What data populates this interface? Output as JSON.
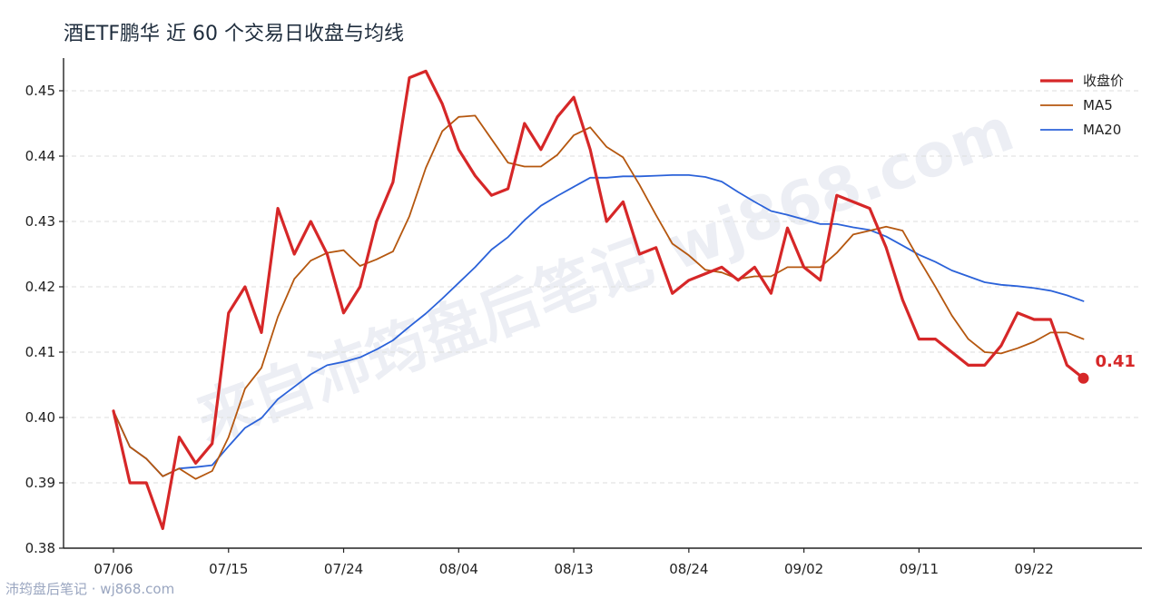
{
  "chart_data": {
    "type": "line",
    "title": "酒ETF鹏华 近 60 个交易日收盘与均线",
    "xlabel": "",
    "ylabel": "",
    "ylim": [
      0.38,
      0.455
    ],
    "yticks": [
      "0.38",
      "0.39",
      "0.40",
      "0.41",
      "0.42",
      "0.43",
      "0.44",
      "0.45"
    ],
    "x_tick_labels": [
      "07/06",
      "07/15",
      "07/24",
      "08/04",
      "08/13",
      "08/24",
      "09/02",
      "09/11",
      "09/22"
    ],
    "x_tick_index": [
      0,
      7,
      14,
      21,
      28,
      35,
      42,
      49,
      56
    ],
    "grid": "horizontal dashed",
    "legend_position": "top-right",
    "series": [
      {
        "name": "收盘价",
        "color": "#d62728",
        "values": [
          0.401,
          0.39,
          0.39,
          0.383,
          0.397,
          0.393,
          0.396,
          0.416,
          0.42,
          0.413,
          0.432,
          0.425,
          0.43,
          0.425,
          0.416,
          0.42,
          0.43,
          0.436,
          0.452,
          0.453,
          0.448,
          0.441,
          0.437,
          0.434,
          0.435,
          0.445,
          0.441,
          0.446,
          0.449,
          0.441,
          0.43,
          0.433,
          0.425,
          0.426,
          0.419,
          0.421,
          0.422,
          0.423,
          0.421,
          0.423,
          0.419,
          0.429,
          0.423,
          0.421,
          0.434,
          0.433,
          0.432,
          0.426,
          0.418,
          0.412,
          0.412,
          0.41,
          0.408,
          0.408,
          0.411,
          0.416,
          0.415,
          0.415,
          0.408,
          0.406
        ]
      },
      {
        "name": "MA5",
        "color": "#b5570f",
        "values": [
          0.401,
          0.3955,
          0.3937,
          0.391,
          0.3922,
          0.3906,
          0.3918,
          0.397,
          0.4044,
          0.4076,
          0.4154,
          0.4212,
          0.424,
          0.4252,
          0.4256,
          0.4232,
          0.4242,
          0.4254,
          0.4308,
          0.4382,
          0.4438,
          0.446,
          0.4462,
          0.4426,
          0.439,
          0.4384,
          0.4384,
          0.4402,
          0.4432,
          0.4444,
          0.4414,
          0.4398,
          0.4356,
          0.431,
          0.4266,
          0.4248,
          0.4226,
          0.4222,
          0.4212,
          0.4216,
          0.4216,
          0.423,
          0.423,
          0.423,
          0.4252,
          0.428,
          0.4286,
          0.4292,
          0.4286,
          0.4242,
          0.42,
          0.4156,
          0.412,
          0.41,
          0.4098,
          0.4106,
          0.4116,
          0.413,
          0.413,
          0.412
        ]
      },
      {
        "name": "MA20",
        "color": "#2b62d9",
        "values": [
          0.401,
          0.3955,
          0.3937,
          0.391,
          0.3922,
          0.3924,
          0.3927,
          0.3956,
          0.3984,
          0.3999,
          0.4028,
          0.4047,
          0.4066,
          0.408,
          0.4085,
          0.4092,
          0.4104,
          0.4118,
          0.4139,
          0.4159,
          0.4182,
          0.4206,
          0.423,
          0.4257,
          0.4276,
          0.4302,
          0.4324,
          0.4339,
          0.4353,
          0.4367,
          0.4367,
          0.4369,
          0.4369,
          0.437,
          0.4371,
          0.4371,
          0.4368,
          0.4361,
          0.4345,
          0.433,
          0.4316,
          0.431,
          0.4303,
          0.4296,
          0.4296,
          0.4291,
          0.4287,
          0.4277,
          0.4263,
          0.4249,
          0.4238,
          0.4225,
          0.4216,
          0.4207,
          0.4203,
          0.4201,
          0.4198,
          0.4194,
          0.4187,
          0.4178
        ]
      }
    ],
    "end_label": "0.41"
  },
  "watermark": "来自沛筠盘后笔记 wj868.com",
  "footer": "沛筠盘后笔记 · wj868.com"
}
